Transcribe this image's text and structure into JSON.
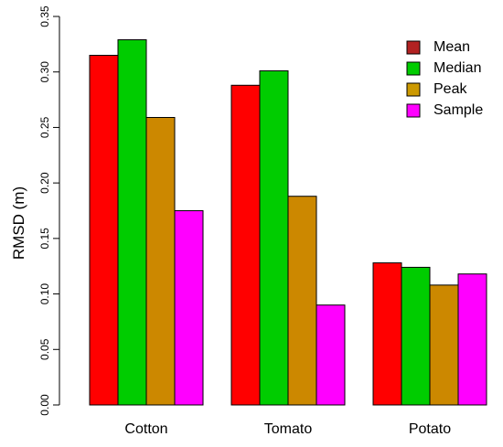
{
  "chart_data": {
    "type": "bar",
    "title": "",
    "xlabel": "",
    "ylabel": "RMSD (m)",
    "ylim": [
      0,
      0.35
    ],
    "yticks": [
      "0.00",
      "0.05",
      "0.10",
      "0.15",
      "0.20",
      "0.25",
      "0.30",
      "0.35"
    ],
    "categories": [
      "Cotton",
      "Tomato",
      "Potato"
    ],
    "series": [
      {
        "name": "Mean",
        "color": "#ff0000",
        "values": [
          0.315,
          0.288,
          0.128
        ]
      },
      {
        "name": "Median",
        "color": "#00cc00",
        "values": [
          0.329,
          0.301,
          0.124
        ]
      },
      {
        "name": "Peak",
        "color": "#cc8800",
        "values": [
          0.259,
          0.188,
          0.108
        ]
      },
      {
        "name": "Sample",
        "color": "#ff00ff",
        "values": [
          0.175,
          0.09,
          0.118
        ]
      }
    ],
    "legend_position": "top-right",
    "legend_swatch_colors": [
      "#b22222",
      "#00cc00",
      "#cc9900",
      "#ff00ff"
    ],
    "grid": false
  }
}
